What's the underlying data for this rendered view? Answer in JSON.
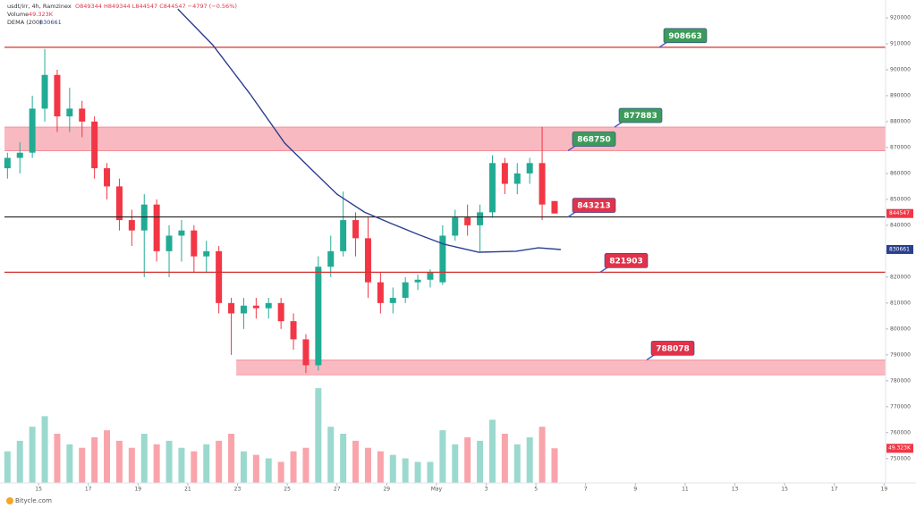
{
  "chart_data": {
    "type": "candlestick",
    "symbol": "usdt/irr, 4h, Ramzinex",
    "ohlc_text": "O849344 H849344 L844547 C844547 −4797 (−0.56%)",
    "footer": "Bitycle.com",
    "xlim": [
      13.63,
      49.06
    ],
    "xticks": [
      15,
      17,
      19,
      21,
      23,
      25,
      27,
      29,
      {
        "value": 31,
        "label": "May"
      },
      {
        "value": 33,
        "label": "3"
      },
      {
        "value": 35,
        "label": "5"
      },
      {
        "value": 37,
        "label": "7"
      },
      {
        "value": 39,
        "label": "9"
      },
      {
        "value": 41,
        "label": "11"
      },
      {
        "value": 43,
        "label": "13"
      },
      {
        "value": 45,
        "label": "15"
      },
      {
        "value": 47,
        "label": "17"
      },
      {
        "value": 49,
        "label": "19"
      }
    ],
    "ylim": [
      740600,
      924140
    ],
    "yticks": [
      920000,
      910000,
      900000,
      890000,
      880000,
      870000,
      860000,
      850000,
      840000,
      830000,
      820000,
      810000,
      800000,
      790000,
      780000,
      770000,
      760000,
      750000
    ],
    "colors": {
      "up": "#22ab94",
      "down": "#f23645"
    },
    "candles": {
      "x": [
        13.75,
        14.25,
        14.75,
        15.25,
        15.75,
        16.25,
        16.75,
        17.25,
        17.75,
        18.25,
        18.75,
        19.25,
        19.75,
        20.25,
        20.75,
        21.25,
        21.75,
        22.25,
        22.75,
        23.25,
        23.75,
        24.25,
        24.75,
        25.25,
        25.75,
        26.25,
        26.75,
        27.25,
        27.75,
        28.25,
        28.75,
        29.25,
        29.75,
        30.25,
        30.75,
        31.25,
        31.75,
        32.25,
        32.75,
        33.25,
        33.75,
        34.25,
        34.75,
        35.25,
        35.75
      ],
      "open": [
        862000,
        866000,
        868000,
        885000,
        898000,
        882000,
        885000,
        880000,
        862000,
        855000,
        842000,
        838000,
        848000,
        830000,
        836000,
        838000,
        828000,
        830000,
        810000,
        806000,
        809000,
        808000,
        810000,
        803000,
        796000,
        786000,
        824000,
        830000,
        842000,
        835000,
        818000,
        810000,
        812000,
        818000,
        819000,
        818000,
        836000,
        843000,
        840000,
        845000,
        864000,
        856000,
        860000,
        864000,
        849344
      ],
      "high": [
        868000,
        872000,
        890000,
        908000,
        900000,
        893000,
        888000,
        882000,
        864000,
        858000,
        846000,
        852000,
        850000,
        840000,
        842000,
        840000,
        834000,
        832000,
        812000,
        812000,
        812000,
        812000,
        812000,
        806000,
        798000,
        828000,
        836000,
        853000,
        845000,
        843000,
        822000,
        816000,
        820000,
        821000,
        823000,
        840000,
        846000,
        848000,
        848000,
        867000,
        866000,
        864000,
        866000,
        878000,
        849344
      ],
      "low": [
        858000,
        860000,
        866000,
        880000,
        876000,
        876000,
        874000,
        858000,
        850000,
        838000,
        832000,
        820000,
        826000,
        820000,
        826000,
        822000,
        822000,
        806000,
        790000,
        800000,
        804000,
        804000,
        800000,
        792000,
        783000,
        784000,
        820000,
        828000,
        828000,
        812000,
        806000,
        806000,
        810000,
        815000,
        816000,
        817000,
        834000,
        836000,
        830000,
        843000,
        852000,
        852000,
        856000,
        842000,
        844547
      ],
      "close": [
        866000,
        868000,
        885000,
        898000,
        882000,
        885000,
        880000,
        862000,
        855000,
        842000,
        838000,
        848000,
        830000,
        836000,
        838000,
        828000,
        830000,
        810000,
        806000,
        809000,
        808000,
        810000,
        803000,
        796000,
        786000,
        824000,
        830000,
        842000,
        835000,
        818000,
        810000,
        812000,
        818000,
        819000,
        822000,
        836000,
        843000,
        840000,
        845000,
        864000,
        856000,
        860000,
        864000,
        848000,
        844547
      ]
    },
    "volume": {
      "name": "Volume",
      "last_label": "49.323K",
      "y2lim": [
        0,
        140
      ],
      "values": [
        45,
        60,
        80,
        95,
        70,
        55,
        50,
        65,
        75,
        60,
        50,
        70,
        55,
        60,
        50,
        45,
        55,
        60,
        70,
        45,
        40,
        35,
        30,
        45,
        50,
        135,
        80,
        70,
        60,
        50,
        45,
        40,
        35,
        30,
        30,
        75,
        55,
        65,
        60,
        90,
        70,
        55,
        65,
        80,
        49.323
      ]
    },
    "dema": {
      "name": "DEMA (200)",
      "color": "#2a3f8f",
      "x": [
        20.6,
        22.0,
        23.5,
        24.9,
        26.0,
        27.0,
        28.1,
        29.2,
        30.25,
        31.3,
        32.7,
        34.2,
        35.1,
        36.0
      ],
      "values": [
        923400,
        909600,
        890700,
        871700,
        861300,
        852000,
        845100,
        840600,
        836500,
        832700,
        829600,
        830000,
        831300,
        830661
      ]
    },
    "hlines": [
      {
        "value": 908663,
        "color": "#d32f2f"
      },
      {
        "value": 843213,
        "color": "#222222"
      },
      {
        "value": 821903,
        "color": "#d32f2f"
      }
    ],
    "zones": [
      {
        "from": 868750,
        "to": 877883,
        "start": 13.63
      },
      {
        "from": 782300,
        "to": 788078,
        "start": 22.95
      }
    ],
    "annotations": [
      {
        "value": 908663,
        "color": "#3d9b5a"
      },
      {
        "value": 877883,
        "color": "#3d9b5a"
      },
      {
        "value": 868750,
        "color": "#3d9b5a"
      },
      {
        "value": 843213,
        "color": "#e0334b"
      },
      {
        "value": 821903,
        "color": "#e0334b"
      },
      {
        "value": 788078,
        "color": "#e0334b"
      }
    ]
  }
}
